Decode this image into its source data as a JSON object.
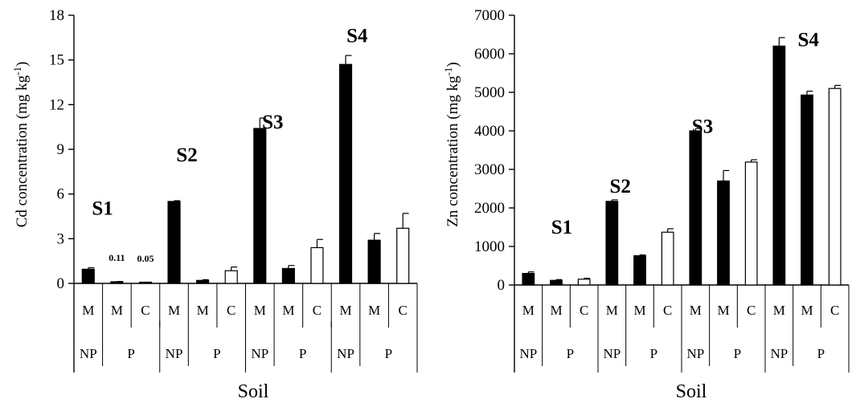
{
  "xlabel": "Soil",
  "chart_data": [
    {
      "type": "bar",
      "ylabel": "Cd concentration (mg kg",
      "ylabel_sup": "-1",
      "ylabel_tail": ")",
      "ylim": [
        0,
        18
      ],
      "yticks": [
        0,
        3,
        6,
        9,
        12,
        15,
        18
      ],
      "groups": [
        "S1",
        "S2",
        "S3",
        "S4"
      ],
      "soil_labels": [
        "S1",
        "S2",
        "S3",
        "S4"
      ],
      "rows": [
        {
          "text": "M",
          "treatment": "NP",
          "group": 0
        },
        {
          "text": "M",
          "treatment": "P",
          "group": 0
        },
        {
          "text": "C",
          "treatment": "P",
          "group": 0
        },
        {
          "text": "M",
          "treatment": "NP",
          "group": 1
        },
        {
          "text": "M",
          "treatment": "P",
          "group": 1
        },
        {
          "text": "C",
          "treatment": "P",
          "group": 1
        },
        {
          "text": "M",
          "treatment": "NP",
          "group": 2
        },
        {
          "text": "M",
          "treatment": "P",
          "group": 2
        },
        {
          "text": "C",
          "treatment": "P",
          "group": 2
        },
        {
          "text": "M",
          "treatment": "NP",
          "group": 3
        },
        {
          "text": "M",
          "treatment": "P",
          "group": 3
        },
        {
          "text": "C",
          "treatment": "P",
          "group": 3
        }
      ],
      "values": [
        0.95,
        0.11,
        0.05,
        5.5,
        0.2,
        0.85,
        10.4,
        1.0,
        2.4,
        14.7,
        2.9,
        3.7
      ],
      "errors": [
        0.1,
        0.02,
        0.02,
        0.05,
        0.05,
        0.25,
        0.7,
        0.2,
        0.55,
        0.6,
        0.45,
        1.0
      ],
      "fills": [
        "black",
        "black",
        "black",
        "black",
        "black",
        "white",
        "black",
        "black",
        "white",
        "black",
        "black",
        "white"
      ],
      "data_labels": [
        {
          "index": 1,
          "text": "0.11"
        },
        {
          "index": 2,
          "text": "0.05"
        }
      ]
    },
    {
      "type": "bar",
      "ylabel": "Zn concentration (mg kg",
      "ylabel_sup": "-1",
      "ylabel_tail": ")",
      "ylim": [
        0,
        7000
      ],
      "yticks": [
        0,
        1000,
        2000,
        3000,
        4000,
        5000,
        6000,
        7000
      ],
      "groups": [
        "S1",
        "S2",
        "S3",
        "S4"
      ],
      "soil_labels": [
        "S1",
        "S2",
        "S3",
        "S4"
      ],
      "rows": [
        {
          "text": "M",
          "treatment": "NP",
          "group": 0
        },
        {
          "text": "M",
          "treatment": "P",
          "group": 0
        },
        {
          "text": "C",
          "treatment": "P",
          "group": 0
        },
        {
          "text": "M",
          "treatment": "NP",
          "group": 1
        },
        {
          "text": "M",
          "treatment": "P",
          "group": 1
        },
        {
          "text": "C",
          "treatment": "P",
          "group": 1
        },
        {
          "text": "M",
          "treatment": "NP",
          "group": 2
        },
        {
          "text": "M",
          "treatment": "P",
          "group": 2
        },
        {
          "text": "C",
          "treatment": "P",
          "group": 2
        },
        {
          "text": "M",
          "treatment": "NP",
          "group": 3
        },
        {
          "text": "M",
          "treatment": "P",
          "group": 3
        },
        {
          "text": "C",
          "treatment": "P",
          "group": 3
        }
      ],
      "values": [
        300,
        120,
        150,
        2170,
        760,
        1370,
        4000,
        2700,
        3190,
        6200,
        4930,
        5100
      ],
      "errors": [
        40,
        20,
        25,
        40,
        20,
        90,
        60,
        270,
        60,
        220,
        100,
        80
      ],
      "fills": [
        "black",
        "black",
        "white",
        "black",
        "black",
        "white",
        "black",
        "black",
        "white",
        "black",
        "black",
        "white"
      ],
      "data_labels": []
    }
  ]
}
